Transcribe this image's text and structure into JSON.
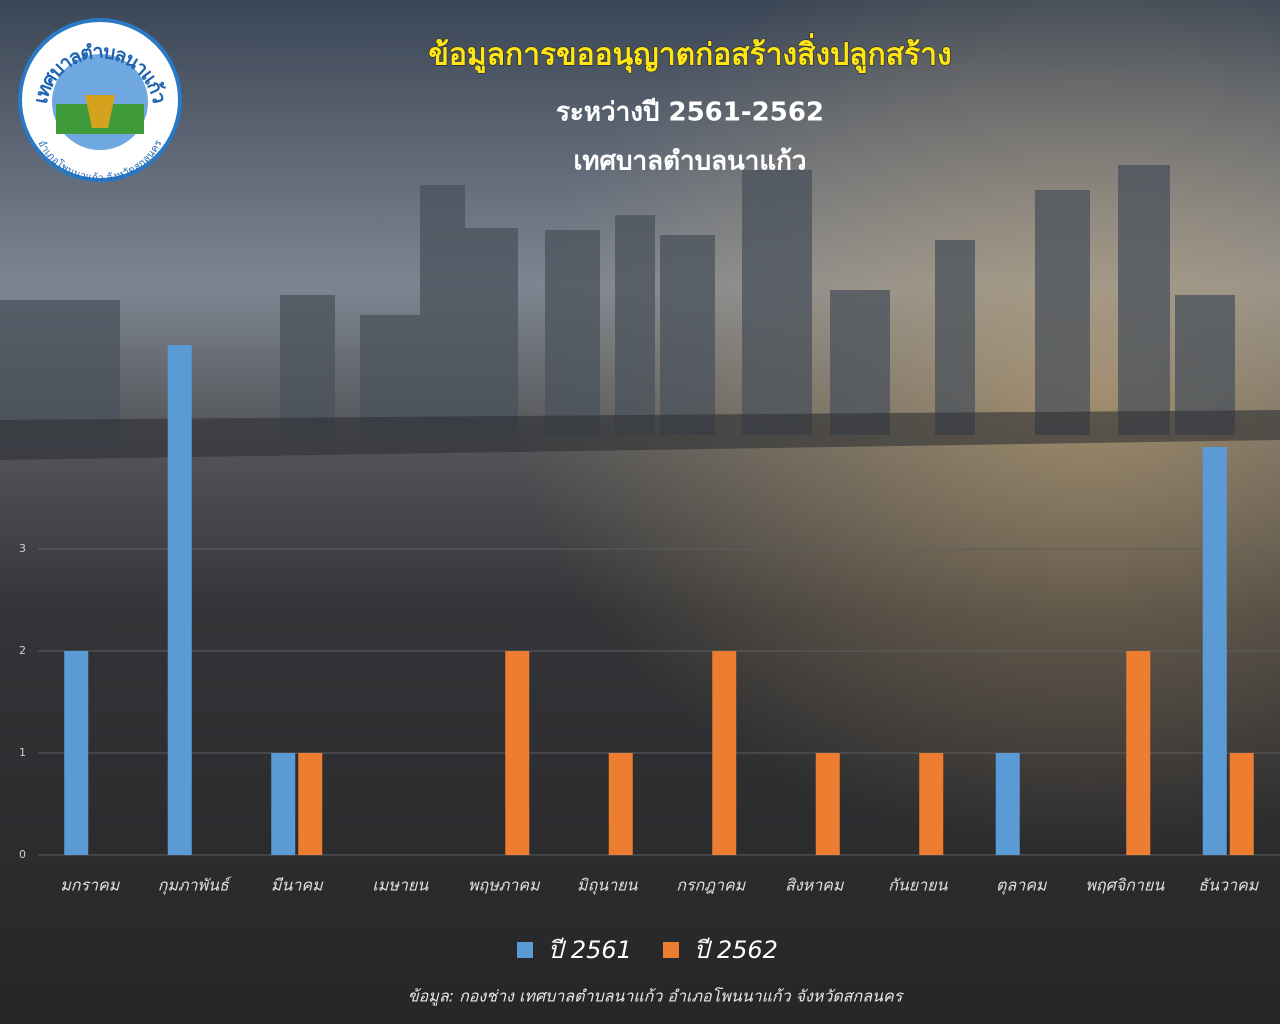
{
  "logo": {
    "name": "เทศบาลตำบลนาแก้ว",
    "district": "อำเภอโพนนาแก้ว จังหวัดสกลนคร"
  },
  "chart_data": {
    "type": "bar",
    "title": "ข้อมูลการขออนุญาตก่อสร้างสิ่งปลูกสร้าง",
    "subtitle": "ระหว่างปี 2561-2562",
    "subtitle2": "เทศบาลตำบลนาแก้ว",
    "source": "ข้อมูล: กองช่าง เทศบาลตำบลนาแก้ว อำเภอโพนนาแก้ว จังหวัดสกลนคร",
    "categories": [
      "มกราคม",
      "กุมภาพันธ์",
      "มีนาคม",
      "เมษายน",
      "พฤษภาคม",
      "มิถุนายน",
      "กรกฎาคม",
      "สิงหาคม",
      "กันยายน",
      "ตุลาคม",
      "พฤศจิกายน",
      "ธันวาคม"
    ],
    "series": [
      {
        "name": "ปี 2561",
        "color": "#5b9bd5",
        "values": [
          2,
          5,
          1,
          0,
          0,
          0,
          0,
          0,
          0,
          1,
          0,
          4
        ]
      },
      {
        "name": "ปี 2562",
        "color": "#ed7d31",
        "values": [
          0,
          0,
          1,
          0,
          2,
          1,
          2,
          1,
          1,
          0,
          2,
          1
        ]
      }
    ],
    "ylim": [
      0,
      5
    ],
    "yticks": [
      0,
      1,
      2,
      3
    ],
    "grid": true,
    "legend": "bottom"
  }
}
